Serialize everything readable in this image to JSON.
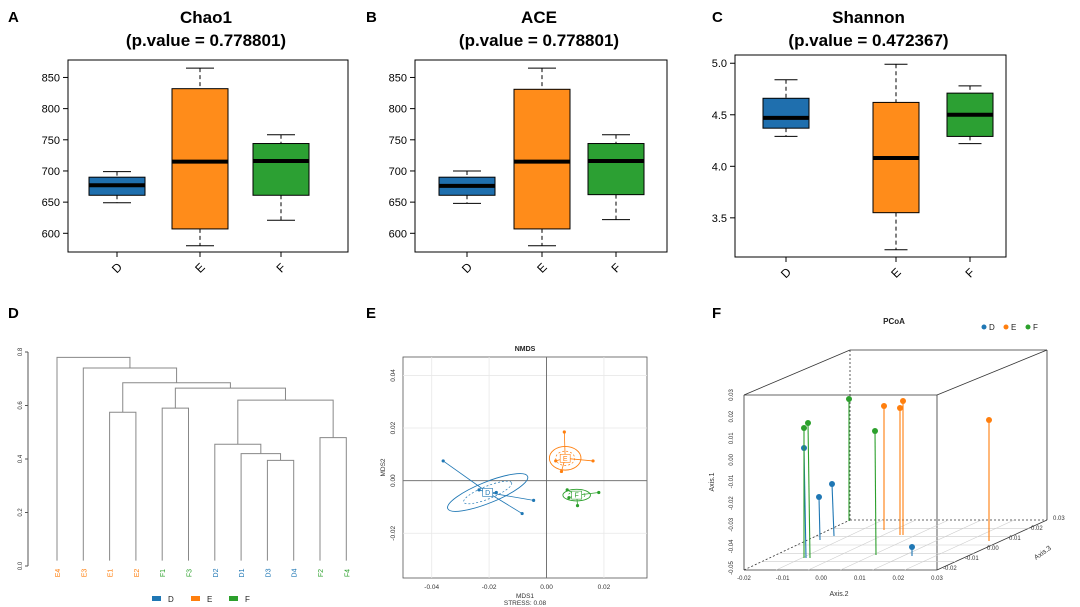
{
  "figure": {
    "panel_letters": [
      "A",
      "B",
      "C",
      "D",
      "E",
      "F"
    ]
  },
  "colors": {
    "D": "#1f77b4",
    "E": "#ff7f0e",
    "F": "#2ca02c",
    "box_D": "#1f6fae",
    "box_E": "#ff8c1a",
    "box_F": "#2ca033",
    "tree": "#888888"
  },
  "chart_data": [
    {
      "id": "A",
      "type": "box",
      "title": "Chao1",
      "subtitle": "(p.value = 0.778801)",
      "categories": [
        "D",
        "E",
        "F"
      ],
      "yticks": [
        600,
        650,
        700,
        750,
        800,
        850
      ],
      "ylim": [
        570,
        878
      ],
      "boxes": [
        {
          "group": "D",
          "min": 649,
          "q1": 661,
          "median": 677,
          "q3": 690,
          "max": 699
        },
        {
          "group": "E",
          "min": 580,
          "q1": 607,
          "median": 715,
          "q3": 832,
          "max": 865
        },
        {
          "group": "F",
          "min": 621,
          "q1": 661,
          "median": 716,
          "q3": 744,
          "max": 758
        }
      ]
    },
    {
      "id": "B",
      "type": "box",
      "title": "ACE",
      "subtitle": "(p.value = 0.778801)",
      "categories": [
        "D",
        "E",
        "F"
      ],
      "yticks": [
        600,
        650,
        700,
        750,
        800,
        850
      ],
      "ylim": [
        570,
        878
      ],
      "boxes": [
        {
          "group": "D",
          "min": 648,
          "q1": 661,
          "median": 676,
          "q3": 690,
          "max": 700
        },
        {
          "group": "E",
          "min": 580,
          "q1": 607,
          "median": 715,
          "q3": 831,
          "max": 865
        },
        {
          "group": "F",
          "min": 622,
          "q1": 662,
          "median": 716,
          "q3": 744,
          "max": 758
        }
      ]
    },
    {
      "id": "C",
      "type": "box",
      "title": "Shannon",
      "subtitle": "(p.value = 0.472367)",
      "categories": [
        "D",
        "E",
        "F"
      ],
      "yticks": [
        3.5,
        4.0,
        4.5,
        5.0
      ],
      "ytick_labels": [
        "3.5",
        "4.0",
        "4.5",
        "5.0"
      ],
      "ylim": [
        3.12,
        5.08
      ],
      "boxes": [
        {
          "group": "D",
          "min": 4.29,
          "q1": 4.37,
          "median": 4.47,
          "q3": 4.66,
          "max": 4.84
        },
        {
          "group": "E",
          "min": 3.19,
          "q1": 3.55,
          "median": 4.08,
          "q3": 4.62,
          "max": 4.99
        },
        {
          "group": "F",
          "min": 4.22,
          "q1": 4.29,
          "median": 4.5,
          "q3": 4.71,
          "max": 4.78
        }
      ]
    },
    {
      "id": "D",
      "type": "dendrogram",
      "yticks": [
        0.0,
        0.2,
        0.4,
        0.6,
        0.8
      ],
      "ytick_labels": [
        "0.0",
        "0.2",
        "0.4",
        "0.6",
        "0.8"
      ],
      "ylim": [
        0,
        0.85
      ],
      "leaves": [
        {
          "label": "E4",
          "group": "E"
        },
        {
          "label": "E3",
          "group": "E"
        },
        {
          "label": "E1",
          "group": "E"
        },
        {
          "label": "E2",
          "group": "E"
        },
        {
          "label": "F1",
          "group": "F"
        },
        {
          "label": "F3",
          "group": "F"
        },
        {
          "label": "D2",
          "group": "D"
        },
        {
          "label": "D1",
          "group": "D"
        },
        {
          "label": "D3",
          "group": "D"
        },
        {
          "label": "D4",
          "group": "D"
        },
        {
          "label": "F2",
          "group": "F"
        },
        {
          "label": "F4",
          "group": "F"
        }
      ],
      "merges": [
        {
          "left": "L:D3",
          "right": "L:D4",
          "height": 0.395
        },
        {
          "left": "L:D1",
          "right": "M:0",
          "height": 0.42
        },
        {
          "left": "L:D2",
          "right": "M:1",
          "height": 0.455
        },
        {
          "left": "L:F2",
          "right": "L:F4",
          "height": 0.48
        },
        {
          "left": "M:2",
          "right": "M:3",
          "height": 0.62
        },
        {
          "left": "L:E1",
          "right": "L:E2",
          "height": 0.575
        },
        {
          "left": "L:F1",
          "right": "L:F3",
          "height": 0.59
        },
        {
          "left": "M:6",
          "right": "M:4",
          "height": 0.665
        },
        {
          "left": "M:5",
          "right": "M:7",
          "height": 0.685
        },
        {
          "left": "L:E3",
          "right": "M:8",
          "height": 0.74
        },
        {
          "left": "L:E4",
          "right": "M:9",
          "height": 0.78
        }
      ],
      "legend": [
        "D",
        "E",
        "F"
      ]
    },
    {
      "id": "E",
      "type": "scatter",
      "title": "NMDS",
      "xlabel": "MDS1",
      "ylabel": "MDS2",
      "stress_label": "STRESS: 0.08",
      "xlim": [
        -0.05,
        0.035
      ],
      "ylim": [
        -0.037,
        0.047
      ],
      "xticks": [
        -0.04,
        -0.02,
        0.0,
        0.02
      ],
      "xtick_labels": [
        "-0.04",
        "-0.02",
        "0.00",
        "0.02"
      ],
      "yticks": [
        -0.02,
        0.0,
        0.02,
        0.04
      ],
      "ytick_labels": [
        "-0.02",
        "0.00",
        "0.02",
        "0.04"
      ],
      "groups": [
        {
          "name": "D",
          "centroid": [
            -0.0205,
            -0.0045
          ],
          "points": [
            [
              -0.036,
              0.0075
            ],
            [
              -0.0235,
              -0.0035
            ],
            [
              -0.0175,
              -0.0045
            ],
            [
              -0.0085,
              -0.0125
            ],
            [
              -0.0045,
              -0.0075
            ]
          ],
          "ellipse": {
            "rx": 0.015,
            "ry": 0.004,
            "angle_deg": -22
          }
        },
        {
          "name": "E",
          "centroid": [
            0.0065,
            0.0085
          ],
          "points": [
            [
              0.0062,
              0.0185
            ],
            [
              0.0032,
              0.0075
            ],
            [
              0.0052,
              0.0035
            ],
            [
              0.0162,
              0.0075
            ]
          ],
          "ellipse": {
            "rx": 0.0055,
            "ry": 0.0045,
            "angle_deg": 0
          }
        },
        {
          "name": "F",
          "centroid": [
            0.0105,
            -0.0055
          ],
          "points": [
            [
              0.0072,
              -0.0035
            ],
            [
              0.0078,
              -0.0065
            ],
            [
              0.0108,
              -0.0095
            ],
            [
              0.0182,
              -0.0045
            ]
          ],
          "ellipse": {
            "rx": 0.0048,
            "ry": 0.0022,
            "angle_deg": 0
          }
        }
      ]
    },
    {
      "id": "F",
      "type": "scatter3d",
      "title": "PCoA",
      "axis1_label": "Axis.1",
      "axis2_label": "Axis.2",
      "axis3_label": "Axis.3",
      "axis1_ticks": [
        "-0.05",
        "-0.04",
        "-0.03",
        "-0.02",
        "-0.01",
        "0.00",
        "0.01",
        "0.02",
        "0.03"
      ],
      "axis2_ticks": [
        "-0.02",
        "-0.01",
        "0.00",
        "0.01",
        "0.02",
        "0.03"
      ],
      "axis3_ticks": [
        "-0.02",
        "-0.01",
        "0.00",
        "0.01",
        "0.02",
        "0.03"
      ],
      "legend": [
        "D",
        "E",
        "F"
      ],
      "points": [
        {
          "group": "D",
          "axis2": -0.004,
          "axis3": -0.02,
          "axis1": 0.0
        },
        {
          "group": "D",
          "axis2": -0.004,
          "axis3": -0.02,
          "axis1": -0.025
        },
        {
          "group": "D",
          "axis2": -0.001,
          "axis3": -0.02,
          "axis1": -0.021
        },
        {
          "group": "D",
          "axis2": 0.025,
          "axis3": -0.02,
          "axis1": -0.043
        },
        {
          "group": "E",
          "axis2": 0.011,
          "axis3": -0.02,
          "axis1": 0.028
        },
        {
          "group": "E",
          "axis2": 0.016,
          "axis3": -0.02,
          "axis1": 0.028
        },
        {
          "group": "E",
          "axis2": 0.016,
          "axis3": -0.02,
          "axis1": 0.026
        },
        {
          "group": "E",
          "axis2": 0.032,
          "axis3": -0.02,
          "axis1": 0.02
        },
        {
          "group": "F",
          "axis2": -0.004,
          "axis3": -0.02,
          "axis1": 0.01
        },
        {
          "group": "F",
          "axis2": -0.003,
          "axis3": -0.02,
          "axis1": 0.011
        },
        {
          "group": "F",
          "axis2": 0.006,
          "axis3": -0.02,
          "axis1": 0.028
        },
        {
          "group": "F",
          "axis2": 0.011,
          "axis3": -0.02,
          "axis1": 0.01
        }
      ]
    }
  ]
}
